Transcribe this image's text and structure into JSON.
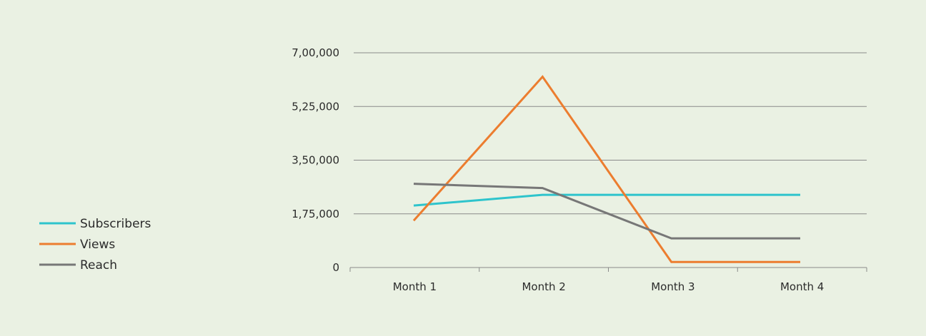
{
  "chart_data": {
    "type": "line",
    "categories": [
      "Month 1",
      "Month 2",
      "Month 3",
      "Month 4"
    ],
    "ylim": [
      0,
      700000
    ],
    "yticks": [
      0,
      175000,
      350000,
      525000,
      700000
    ],
    "ytick_labels": [
      "0",
      "1,75,000",
      "3,50,000",
      "5,25,000",
      "7,00,000"
    ],
    "grid": true,
    "legend_position": "left",
    "series": [
      {
        "name": "Subscribers",
        "color": "#2ec4cc",
        "values": [
          202000,
          237000,
          237000,
          237000
        ]
      },
      {
        "name": "Views",
        "color": "#ec7d2f",
        "values": [
          153000,
          622000,
          18000,
          18000
        ]
      },
      {
        "name": "Reach",
        "color": "#777777",
        "values": [
          273000,
          259000,
          95000,
          95000
        ]
      }
    ]
  }
}
